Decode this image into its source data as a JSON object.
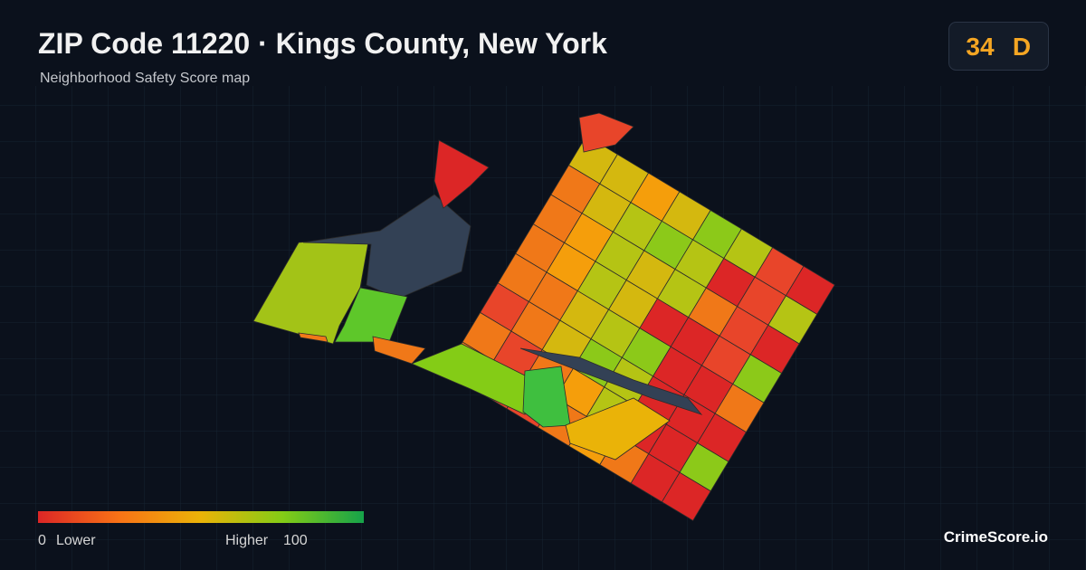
{
  "header": {
    "title": "ZIP Code 11220 · Kings County, New York",
    "subtitle": "Neighborhood Safety Score map"
  },
  "score": {
    "value": "34",
    "grade": "D"
  },
  "legend": {
    "min": "0",
    "min_label": "Lower",
    "max_label": "Higher",
    "max": "100"
  },
  "brand": "CrimeScore.io"
}
